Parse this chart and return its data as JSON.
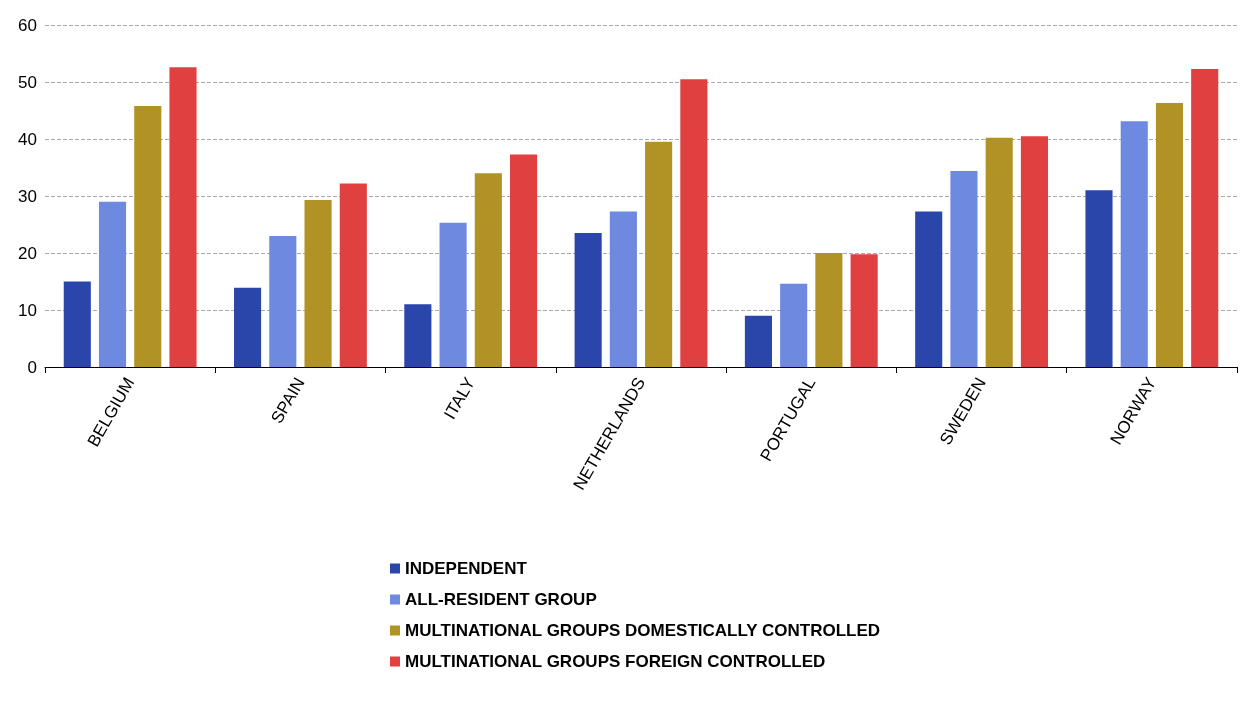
{
  "chart_data": {
    "type": "bar",
    "categories": [
      "BELGIUM",
      "SPAIN",
      "ITALY",
      "NETHERLANDS",
      "PORTUGAL",
      "SWEDEN",
      "NORWAY"
    ],
    "series": [
      {
        "name": "INDEPENDENT",
        "color": "#2a46ab",
        "values": [
          15,
          13.9,
          11,
          23.5,
          9,
          27.3,
          31
        ]
      },
      {
        "name": "ALL-RESIDENT GROUP",
        "color": "#6d89e0",
        "values": [
          29,
          23,
          25.3,
          27.3,
          14.6,
          34.4,
          43.1
        ]
      },
      {
        "name": "MULTINATIONAL GROUPS DOMESTICALLY CONTROLLED",
        "color": "#b09324",
        "values": [
          45.8,
          29.3,
          34,
          39.5,
          20,
          40.2,
          46.3
        ]
      },
      {
        "name": "MULTINATIONAL GROUPS FOREIGN CONTROLLED",
        "color": "#e04040",
        "values": [
          52.6,
          32.2,
          37.3,
          50.5,
          19.8,
          40.5,
          52.3
        ]
      }
    ],
    "ylim": [
      0,
      60
    ],
    "yticks": [
      0,
      10,
      20,
      30,
      40,
      50,
      60
    ],
    "grid": "y",
    "legend": "bottom"
  }
}
